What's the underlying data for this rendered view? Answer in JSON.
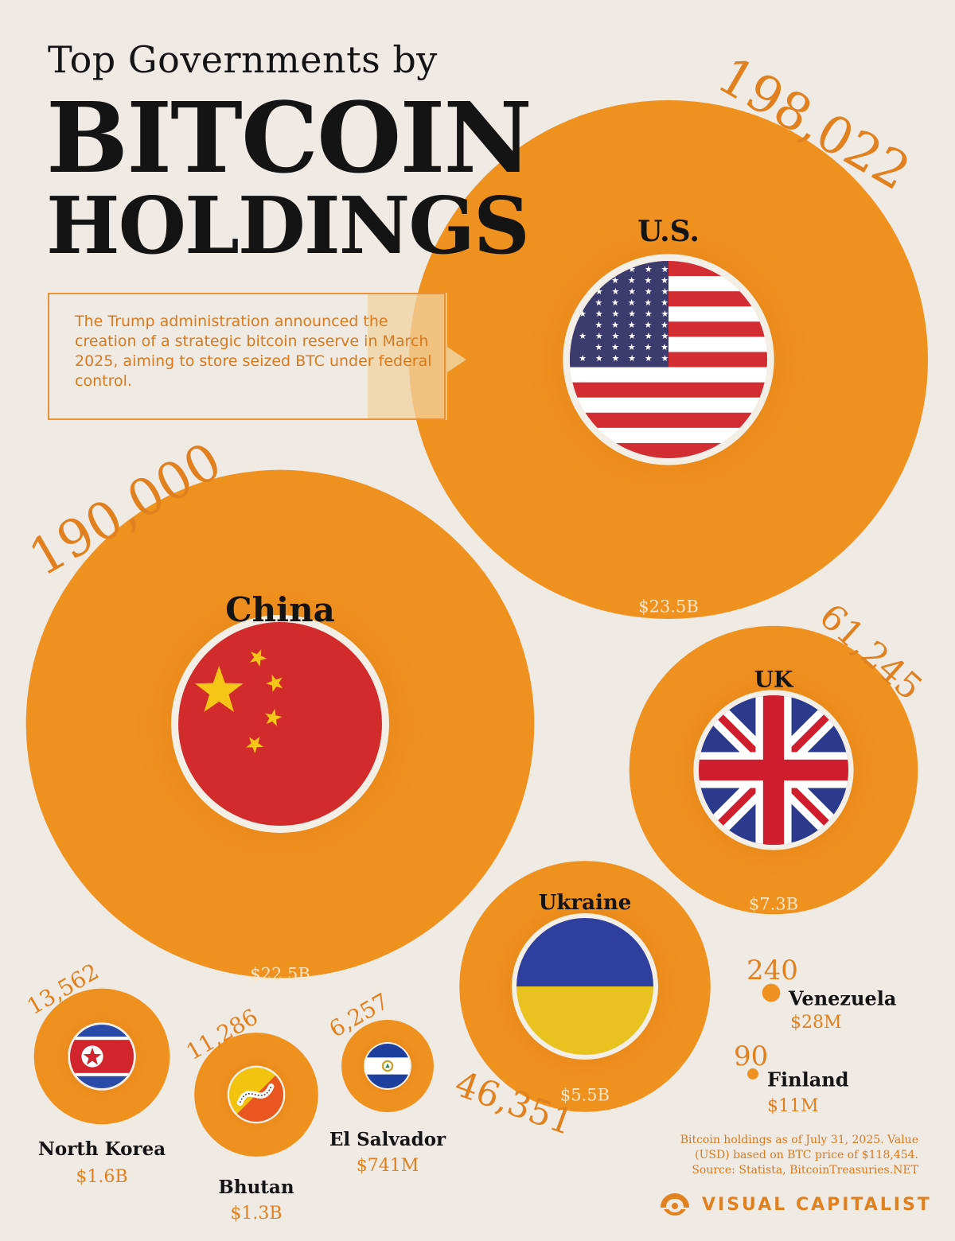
{
  "title": {
    "line1": "Top Governments by",
    "line2": "BITCOIN",
    "line3": "HOLDINGS"
  },
  "callout": {
    "text": "The Trump administration announced the creation of a strategic bitcoin reserve in March 2025, aiming to store seized BTC under federal control."
  },
  "footnote": {
    "line1": "Bitcoin holdings as of July 31, 2025. Value",
    "line2": "(USD) based on BTC price of $118,454.",
    "line3": "Source: Statista, BitcoinTreasuries.NET"
  },
  "brand": {
    "name": "VISUAL CAPITALIST"
  },
  "colors": {
    "background": "#efeae3",
    "bubble": "#ef911f",
    "accent_text": "#e0801f",
    "label_dark": "#141414",
    "value_light": "#fbe4c2"
  },
  "chart_data": {
    "type": "bubble",
    "unit": "BTC",
    "series": [
      {
        "country": "U.S.",
        "btc": 198022,
        "btc_label": "198,022",
        "value_usd": "$23.5B",
        "flag": "us-flag-icon"
      },
      {
        "country": "China",
        "btc": 190000,
        "btc_label": "190,000",
        "value_usd": "$22.5B",
        "flag": "china-flag-icon"
      },
      {
        "country": "UK",
        "btc": 61245,
        "btc_label": "61,245",
        "value_usd": "$7.3B",
        "flag": "uk-flag-icon"
      },
      {
        "country": "Ukraine",
        "btc": 46351,
        "btc_label": "46,351",
        "value_usd": "$5.5B",
        "flag": "ukraine-flag-icon"
      },
      {
        "country": "North Korea",
        "btc": 13562,
        "btc_label": "13,562",
        "value_usd": "$1.6B",
        "flag": "north-korea-flag-icon"
      },
      {
        "country": "Bhutan",
        "btc": 11286,
        "btc_label": "11,286",
        "value_usd": "$1.3B",
        "flag": "bhutan-flag-icon"
      },
      {
        "country": "El Salvador",
        "btc": 6257,
        "btc_label": "6,257",
        "value_usd": "$741M",
        "flag": "el-salvador-flag-icon"
      },
      {
        "country": "Venezuela",
        "btc": 240,
        "btc_label": "240",
        "value_usd": "$28M",
        "flag": ""
      },
      {
        "country": "Finland",
        "btc": 90,
        "btc_label": "90",
        "value_usd": "$11M",
        "flag": ""
      }
    ]
  }
}
